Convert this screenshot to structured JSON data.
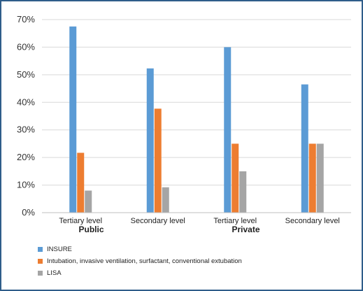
{
  "chart_data": {
    "type": "bar",
    "categories": [
      "Tertiary level",
      "Secondary level",
      "Tertiary level",
      "Secondary level"
    ],
    "groups": [
      {
        "label": "Public",
        "categories": [
          0,
          1
        ]
      },
      {
        "label": "Private",
        "categories": [
          2,
          3
        ]
      }
    ],
    "series": [
      {
        "name": "INSURE",
        "color": "#5b9bd5",
        "values": [
          67.5,
          52.3,
          60.0,
          46.5
        ]
      },
      {
        "name": "Intubation, invasive ventilation, surfactant, conventional extubation",
        "color": "#ed7d31",
        "values": [
          21.7,
          37.7,
          25.0,
          25.0
        ]
      },
      {
        "name": "LISA",
        "color": "#a5a5a5",
        "values": [
          8.0,
          9.2,
          15.0,
          25.0
        ]
      }
    ],
    "ylim": [
      0,
      70
    ],
    "yticks": [
      0,
      10,
      20,
      30,
      40,
      50,
      60,
      70
    ],
    "ytick_labels": [
      "0%",
      "10%",
      "20%",
      "30%",
      "40%",
      "50%",
      "60%",
      "70%"
    ],
    "grid": "horizontal",
    "legend_position": "bottom-left",
    "title": "",
    "xlabel": "",
    "ylabel": ""
  }
}
